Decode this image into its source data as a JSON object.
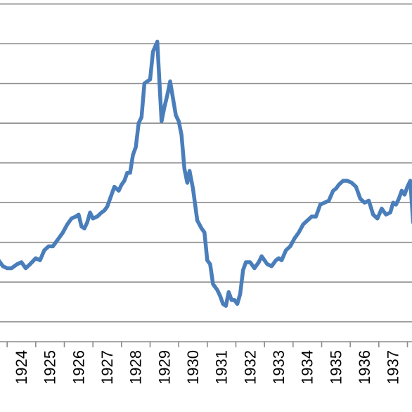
{
  "chart_data": {
    "type": "line",
    "title": "",
    "xlabel": "",
    "ylabel": "",
    "grid": true,
    "legend": "none",
    "x_ticks": [
      "1924",
      "1925",
      "1926",
      "1927",
      "1928",
      "1929",
      "1930",
      "1931",
      "1932",
      "1933",
      "1934",
      "1935",
      "1936",
      "1937"
    ],
    "xlim": [
      1923.25,
      1937.66
    ],
    "ylim": [
      0,
      8.6
    ],
    "y_gridlines": [
      0.5,
      1.5,
      2.5,
      3.5,
      4.5,
      5.5,
      6.5,
      7.5,
      8.5
    ],
    "series": [
      {
        "color": "#4a7ebb",
        "x": [
          1923.2,
          1923.35,
          1923.5,
          1923.65,
          1923.85,
          1924.0,
          1924.15,
          1924.3,
          1924.5,
          1924.65,
          1924.8,
          1924.95,
          1925.1,
          1925.3,
          1925.45,
          1925.6,
          1925.75,
          1925.9,
          1926.0,
          1926.1,
          1926.2,
          1926.3,
          1926.4,
          1926.5,
          1926.65,
          1926.8,
          1926.9,
          1927.0,
          1927.1,
          1927.25,
          1927.4,
          1927.5,
          1927.6,
          1927.7,
          1927.8,
          1927.9,
          1928.0,
          1928.1,
          1928.2,
          1928.3,
          1928.4,
          1928.5,
          1928.6,
          1928.75,
          1928.9,
          1929.0,
          1929.1,
          1929.2,
          1929.4,
          1929.5,
          1929.6,
          1929.7,
          1929.8,
          1929.88,
          1930.0,
          1930.15,
          1930.3,
          1930.4,
          1930.5,
          1930.6,
          1930.7,
          1930.85,
          1930.95,
          1931.05,
          1931.15,
          1931.25,
          1931.35,
          1931.45,
          1931.55,
          1931.65,
          1931.75,
          1931.85,
          1932.0,
          1932.15,
          1932.3,
          1932.4,
          1932.5,
          1932.6,
          1932.75,
          1932.9,
          1933.0,
          1933.1,
          1933.25,
          1933.4,
          1933.55,
          1933.7,
          1933.85,
          1934.0,
          1934.15,
          1934.3,
          1934.45,
          1934.6,
          1934.75,
          1934.9,
          1935.0,
          1935.1,
          1935.25,
          1935.4,
          1935.55,
          1935.7,
          1935.85,
          1936.0,
          1936.15,
          1936.3,
          1936.45,
          1936.6,
          1936.75,
          1936.9,
          1937.0,
          1937.1,
          1937.2,
          1937.3,
          1937.4,
          1937.5,
          1937.6,
          1937.7
        ],
        "values": [
          2.05,
          1.9,
          1.85,
          1.85,
          1.95,
          2.0,
          1.85,
          1.95,
          2.1,
          2.05,
          2.3,
          2.4,
          2.4,
          2.6,
          2.75,
          2.95,
          3.1,
          3.15,
          3.2,
          2.9,
          2.85,
          3.0,
          3.25,
          3.1,
          3.15,
          3.25,
          3.3,
          3.4,
          3.6,
          3.9,
          3.8,
          3.95,
          4.05,
          4.25,
          4.25,
          4.7,
          4.9,
          5.5,
          5.65,
          6.5,
          6.55,
          6.6,
          7.3,
          7.55,
          5.55,
          5.9,
          6.2,
          6.55,
          5.7,
          5.55,
          5.2,
          4.35,
          4.0,
          4.3,
          3.85,
          3.05,
          2.85,
          2.75,
          2.05,
          1.95,
          1.45,
          1.3,
          1.15,
          0.95,
          0.9,
          1.25,
          1.05,
          1.05,
          0.95,
          1.2,
          1.8,
          2.0,
          2.0,
          1.85,
          2.0,
          2.15,
          2.05,
          1.95,
          1.9,
          2.05,
          2.1,
          2.05,
          2.3,
          2.4,
          2.6,
          2.75,
          2.95,
          3.05,
          3.15,
          3.15,
          3.45,
          3.5,
          3.55,
          3.8,
          3.85,
          3.95,
          4.05,
          4.05,
          4.0,
          3.9,
          3.6,
          3.5,
          3.55,
          3.2,
          3.1,
          3.35,
          3.2,
          3.25,
          3.5,
          3.45,
          3.6,
          3.8,
          3.7,
          3.9,
          4.05,
          3.0
        ]
      }
    ]
  }
}
